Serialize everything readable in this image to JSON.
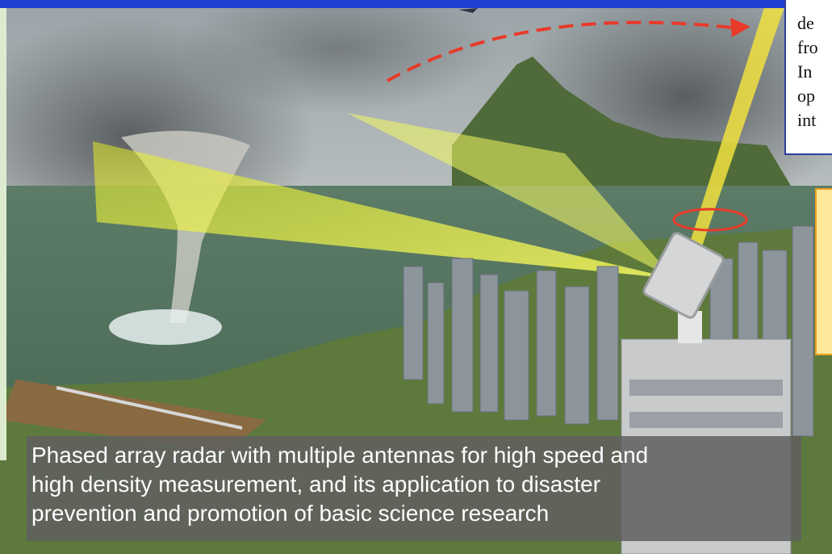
{
  "description_box": {
    "lines": [
      "de",
      "fro",
      "In",
      "op",
      "int"
    ]
  },
  "callout": {
    "text": "("
  },
  "caption": {
    "lines": [
      "Phased array radar with multiple antennas for high speed and",
      "high density measurement, and its application to disaster",
      "prevention and promotion of basic science research"
    ]
  },
  "colors": {
    "title_bar": "#1f3fd0",
    "beam": "#ffff33",
    "scan_arrow": "#e83a2a",
    "caption_bg": "#5f5f5f"
  }
}
